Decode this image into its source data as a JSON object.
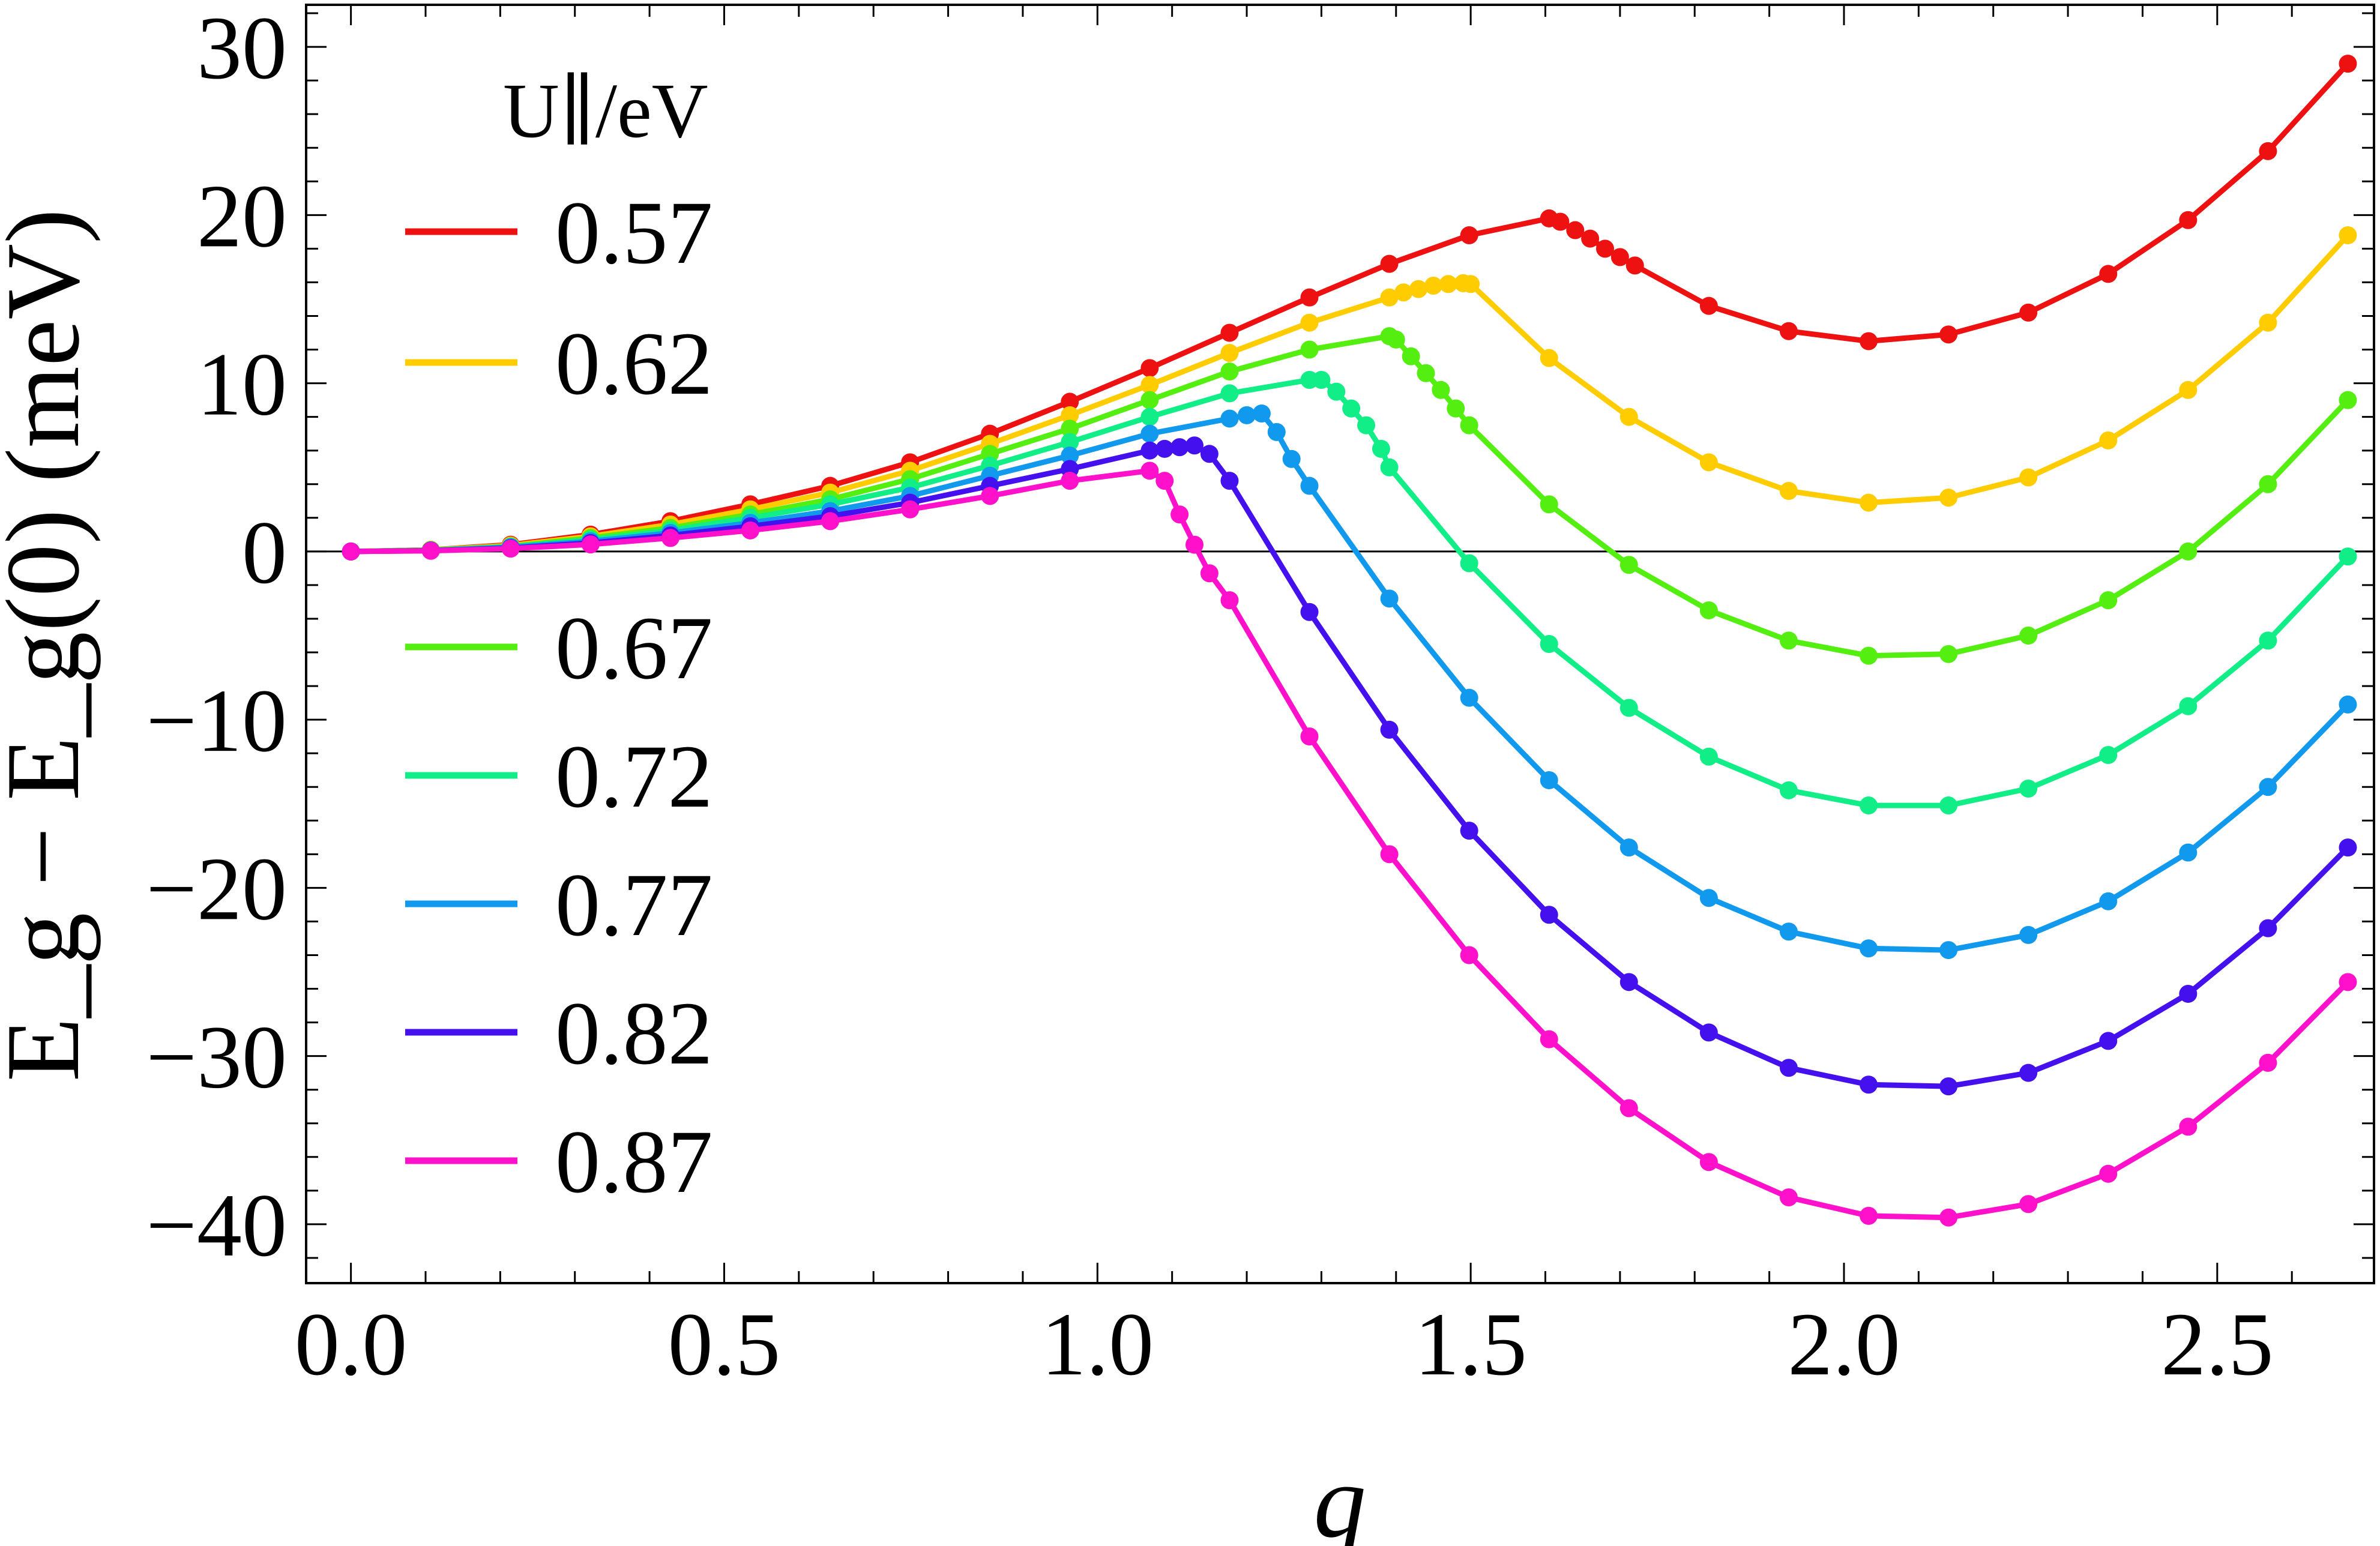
{
  "chart_data": {
    "type": "line",
    "xlabel": "q",
    "ylabel": "E_g − E_g(0) (meV)",
    "xlim": [
      -0.06,
      2.71
    ],
    "ylim": [
      -43.5,
      32.5
    ],
    "xticks": [
      0.0,
      0.5,
      1.0,
      1.5,
      2.0,
      2.5
    ],
    "xtick_labels": [
      "0.0",
      "0.5",
      "1.0",
      "1.5",
      "2.0",
      "2.5"
    ],
    "yticks": [
      30,
      20,
      10,
      0,
      -10,
      -20,
      -30,
      -40
    ],
    "ytick_labels": [
      "30",
      "20",
      "10",
      "0",
      "−10",
      "−20",
      "−30",
      "−40"
    ],
    "legend_title": "U∥/eV",
    "reference_line_y": 0,
    "series": [
      {
        "name": "0.57",
        "color": "#ee1111",
        "points": [
          [
            0.0,
            0
          ],
          [
            0.107,
            0.1
          ],
          [
            0.214,
            0.4
          ],
          [
            0.321,
            1.0
          ],
          [
            0.428,
            1.8
          ],
          [
            0.535,
            2.8
          ],
          [
            0.642,
            3.9
          ],
          [
            0.749,
            5.3
          ],
          [
            0.856,
            7.0
          ],
          [
            0.963,
            8.9
          ],
          [
            1.07,
            10.9
          ],
          [
            1.177,
            13.0
          ],
          [
            1.284,
            15.1
          ],
          [
            1.391,
            17.1
          ],
          [
            1.498,
            18.8
          ],
          [
            1.605,
            19.8
          ],
          [
            1.62,
            19.6
          ],
          [
            1.64,
            19.1
          ],
          [
            1.66,
            18.6
          ],
          [
            1.68,
            18.0
          ],
          [
            1.7,
            17.5
          ],
          [
            1.72,
            17.0
          ],
          [
            1.819,
            14.6
          ],
          [
            1.926,
            13.1
          ],
          [
            2.033,
            12.5
          ],
          [
            2.14,
            12.9
          ],
          [
            2.247,
            14.2
          ],
          [
            2.354,
            16.5
          ],
          [
            2.461,
            19.7
          ],
          [
            2.568,
            23.8
          ],
          [
            2.675,
            29.0
          ]
        ]
      },
      {
        "name": "0.62",
        "color": "#ffcc00",
        "points": [
          [
            0.0,
            0
          ],
          [
            0.107,
            0.1
          ],
          [
            0.214,
            0.35
          ],
          [
            0.321,
            0.9
          ],
          [
            0.428,
            1.6
          ],
          [
            0.535,
            2.5
          ],
          [
            0.642,
            3.5
          ],
          [
            0.749,
            4.8
          ],
          [
            0.856,
            6.4
          ],
          [
            0.963,
            8.1
          ],
          [
            1.07,
            9.9
          ],
          [
            1.177,
            11.8
          ],
          [
            1.284,
            13.6
          ],
          [
            1.391,
            15.1
          ],
          [
            1.41,
            15.4
          ],
          [
            1.43,
            15.6
          ],
          [
            1.45,
            15.8
          ],
          [
            1.47,
            15.9
          ],
          [
            1.49,
            15.95
          ],
          [
            1.5,
            15.9
          ],
          [
            1.605,
            11.5
          ],
          [
            1.712,
            8.0
          ],
          [
            1.819,
            5.3
          ],
          [
            1.926,
            3.6
          ],
          [
            2.033,
            2.9
          ],
          [
            2.14,
            3.2
          ],
          [
            2.247,
            4.4
          ],
          [
            2.354,
            6.6
          ],
          [
            2.461,
            9.6
          ],
          [
            2.568,
            13.6
          ],
          [
            2.675,
            18.8
          ]
        ]
      },
      {
        "name": "0.67",
        "color": "#55ee11",
        "points": [
          [
            0.0,
            0
          ],
          [
            0.107,
            0.08
          ],
          [
            0.214,
            0.3
          ],
          [
            0.321,
            0.8
          ],
          [
            0.428,
            1.4
          ],
          [
            0.535,
            2.2
          ],
          [
            0.642,
            3.1
          ],
          [
            0.749,
            4.3
          ],
          [
            0.856,
            5.8
          ],
          [
            0.963,
            7.3
          ],
          [
            1.07,
            9.0
          ],
          [
            1.177,
            10.7
          ],
          [
            1.284,
            12.0
          ],
          [
            1.391,
            12.8
          ],
          [
            1.4,
            12.6
          ],
          [
            1.42,
            11.6
          ],
          [
            1.44,
            10.6
          ],
          [
            1.46,
            9.6
          ],
          [
            1.48,
            8.5
          ],
          [
            1.498,
            7.5
          ],
          [
            1.605,
            2.8
          ],
          [
            1.712,
            -0.8
          ],
          [
            1.819,
            -3.5
          ],
          [
            1.926,
            -5.3
          ],
          [
            2.033,
            -6.2
          ],
          [
            2.14,
            -6.1
          ],
          [
            2.247,
            -5.0
          ],
          [
            2.354,
            -2.9
          ],
          [
            2.461,
            0.0
          ],
          [
            2.568,
            4.0
          ],
          [
            2.675,
            9.0
          ]
        ]
      },
      {
        "name": "0.72",
        "color": "#11ee88",
        "points": [
          [
            0.0,
            0
          ],
          [
            0.107,
            0.07
          ],
          [
            0.214,
            0.28
          ],
          [
            0.321,
            0.7
          ],
          [
            0.428,
            1.25
          ],
          [
            0.535,
            2.0
          ],
          [
            0.642,
            2.8
          ],
          [
            0.749,
            3.8
          ],
          [
            0.856,
            5.1
          ],
          [
            0.963,
            6.5
          ],
          [
            1.07,
            8.0
          ],
          [
            1.177,
            9.4
          ],
          [
            1.284,
            10.2
          ],
          [
            1.3,
            10.2
          ],
          [
            1.32,
            9.5
          ],
          [
            1.34,
            8.5
          ],
          [
            1.36,
            7.5
          ],
          [
            1.38,
            6.1
          ],
          [
            1.391,
            5.0
          ],
          [
            1.498,
            -0.7
          ],
          [
            1.605,
            -5.5
          ],
          [
            1.712,
            -9.3
          ],
          [
            1.819,
            -12.2
          ],
          [
            1.926,
            -14.2
          ],
          [
            2.033,
            -15.1
          ],
          [
            2.14,
            -15.1
          ],
          [
            2.247,
            -14.1
          ],
          [
            2.354,
            -12.1
          ],
          [
            2.461,
            -9.2
          ],
          [
            2.568,
            -5.3
          ],
          [
            2.675,
            -0.3
          ]
        ]
      },
      {
        "name": "0.77",
        "color": "#1199ee",
        "points": [
          [
            0.0,
            0
          ],
          [
            0.107,
            0.06
          ],
          [
            0.214,
            0.25
          ],
          [
            0.321,
            0.6
          ],
          [
            0.428,
            1.1
          ],
          [
            0.535,
            1.7
          ],
          [
            0.642,
            2.4
          ],
          [
            0.749,
            3.3
          ],
          [
            0.856,
            4.5
          ],
          [
            0.963,
            5.7
          ],
          [
            1.07,
            7.0
          ],
          [
            1.177,
            7.9
          ],
          [
            1.2,
            8.1
          ],
          [
            1.22,
            8.2
          ],
          [
            1.24,
            7.1
          ],
          [
            1.26,
            5.5
          ],
          [
            1.284,
            3.9
          ],
          [
            1.391,
            -2.8
          ],
          [
            1.498,
            -8.7
          ],
          [
            1.605,
            -13.6
          ],
          [
            1.712,
            -17.6
          ],
          [
            1.819,
            -20.6
          ],
          [
            1.926,
            -22.6
          ],
          [
            2.033,
            -23.6
          ],
          [
            2.14,
            -23.7
          ],
          [
            2.247,
            -22.8
          ],
          [
            2.354,
            -20.8
          ],
          [
            2.461,
            -17.9
          ],
          [
            2.568,
            -14.0
          ],
          [
            2.675,
            -9.1
          ]
        ]
      },
      {
        "name": "0.82",
        "color": "#4411ee",
        "points": [
          [
            0.0,
            0
          ],
          [
            0.107,
            0.05
          ],
          [
            0.214,
            0.2
          ],
          [
            0.321,
            0.5
          ],
          [
            0.428,
            0.95
          ],
          [
            0.535,
            1.5
          ],
          [
            0.642,
            2.1
          ],
          [
            0.749,
            2.9
          ],
          [
            0.856,
            3.9
          ],
          [
            0.963,
            4.9
          ],
          [
            1.07,
            6.0
          ],
          [
            1.09,
            6.1
          ],
          [
            1.11,
            6.2
          ],
          [
            1.13,
            6.3
          ],
          [
            1.15,
            5.8
          ],
          [
            1.177,
            4.2
          ],
          [
            1.284,
            -3.6
          ],
          [
            1.391,
            -10.6
          ],
          [
            1.498,
            -16.6
          ],
          [
            1.605,
            -21.6
          ],
          [
            1.712,
            -25.6
          ],
          [
            1.819,
            -28.6
          ],
          [
            1.926,
            -30.7
          ],
          [
            2.033,
            -31.7
          ],
          [
            2.14,
            -31.8
          ],
          [
            2.247,
            -31.0
          ],
          [
            2.354,
            -29.1
          ],
          [
            2.461,
            -26.3
          ],
          [
            2.568,
            -22.4
          ],
          [
            2.675,
            -17.6
          ]
        ]
      },
      {
        "name": "0.87",
        "color": "#ff11cc",
        "points": [
          [
            0.0,
            0
          ],
          [
            0.107,
            0.04
          ],
          [
            0.214,
            0.17
          ],
          [
            0.321,
            0.42
          ],
          [
            0.428,
            0.8
          ],
          [
            0.535,
            1.25
          ],
          [
            0.642,
            1.8
          ],
          [
            0.749,
            2.5
          ],
          [
            0.856,
            3.3
          ],
          [
            0.963,
            4.2
          ],
          [
            1.07,
            4.8
          ],
          [
            1.09,
            4.2
          ],
          [
            1.11,
            2.2
          ],
          [
            1.13,
            0.4
          ],
          [
            1.15,
            -1.3
          ],
          [
            1.177,
            -2.9
          ],
          [
            1.284,
            -11.0
          ],
          [
            1.391,
            -18.0
          ],
          [
            1.498,
            -24.0
          ],
          [
            1.605,
            -29.0
          ],
          [
            1.712,
            -33.1
          ],
          [
            1.819,
            -36.3
          ],
          [
            1.926,
            -38.4
          ],
          [
            2.033,
            -39.5
          ],
          [
            2.14,
            -39.6
          ],
          [
            2.247,
            -38.8
          ],
          [
            2.354,
            -37.0
          ],
          [
            2.461,
            -34.2
          ],
          [
            2.568,
            -30.4
          ],
          [
            2.675,
            -25.6
          ]
        ]
      }
    ]
  }
}
